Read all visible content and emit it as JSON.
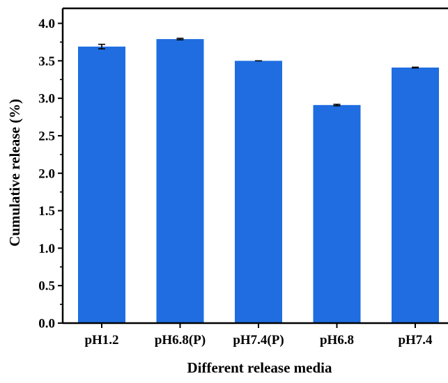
{
  "chart_data": {
    "type": "bar",
    "title": "",
    "xlabel": "Different release media",
    "ylabel": "Cumulative release (%)",
    "categories": [
      "pH1.2",
      "pH6.8(P)",
      "pH7.4(P)",
      "pH6.8",
      "pH7.4"
    ],
    "values": [
      3.69,
      3.79,
      3.5,
      2.91,
      3.41
    ],
    "error": [
      0.03,
      0.01,
      0.0,
      0.01,
      0.005
    ],
    "ylim": [
      0,
      4.2
    ],
    "yticks": [
      "0.0",
      "0.5",
      "1.0",
      "1.5",
      "2.0",
      "2.5",
      "3.0",
      "3.5",
      "4.0"
    ],
    "ytick_values": [
      0,
      0.5,
      1.0,
      1.5,
      2.0,
      2.5,
      3.0,
      3.5,
      4.0
    ],
    "grid": false,
    "bar_color": "#1f6de0",
    "error_color": "#000000"
  }
}
